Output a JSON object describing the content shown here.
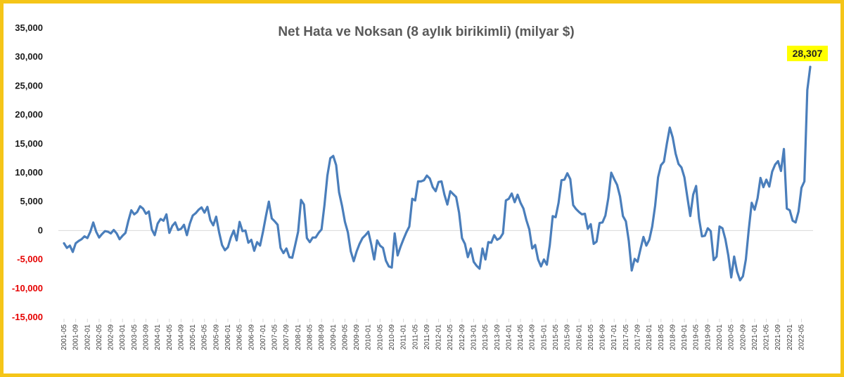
{
  "chart_data": {
    "type": "line",
    "title": "Net Hata ve Noksan (8 aylık birikimli) (milyar $)",
    "xlabel": "",
    "ylabel": "",
    "ylim": [
      -15000,
      35000
    ],
    "yticks": [
      -15000,
      -10000,
      -5000,
      0,
      5000,
      10000,
      15000,
      20000,
      25000,
      30000,
      35000
    ],
    "ytick_labels": [
      "-15,000",
      "-10,000",
      "-5,000",
      "0",
      "5,000",
      "10,000",
      "15,000",
      "20,000",
      "25,000",
      "30,000",
      "35,000"
    ],
    "xtick_labels": [
      "2001-05",
      "2001-09",
      "2002-01",
      "2002-05",
      "2002-09",
      "2003-01",
      "2003-05",
      "2003-09",
      "2004-01",
      "2004-05",
      "2004-09",
      "2005-01",
      "2005-05",
      "2005-09",
      "2006-01",
      "2006-05",
      "2006-09",
      "2007-01",
      "2007-05",
      "2007-09",
      "2008-01",
      "2008-05",
      "2008-09",
      "2009-01",
      "2009-05",
      "2009-09",
      "2010-01",
      "2010-05",
      "2010-09",
      "2011-01",
      "2011-05",
      "2011-09",
      "2012-01",
      "2012-05",
      "2012-09",
      "2013-01",
      "2013-05",
      "2013-09",
      "2014-01",
      "2014-05",
      "2014-09",
      "2015-01",
      "2015-05",
      "2015-09",
      "2016-01",
      "2016-05",
      "2016-09",
      "2017-01",
      "2017-05",
      "2017-09",
      "2018-01",
      "2018-05",
      "2018-09",
      "2019-01",
      "2019-05",
      "2019-09",
      "2020-01",
      "2020-05",
      "2020-09",
      "2021-01",
      "2021-05",
      "2021-09",
      "2022-01",
      "2022-05"
    ],
    "start_period": "2001-05",
    "grid": false,
    "legend": "none",
    "series": [
      {
        "color": "#4a7ebb",
        "values": [
          -2200,
          -3000,
          -2600,
          -3700,
          -2200,
          -1800,
          -1500,
          -1000,
          -1300,
          -200,
          1400,
          -200,
          -1200,
          -600,
          -100,
          -200,
          -500,
          100,
          -500,
          -1500,
          -900,
          -400,
          1700,
          3500,
          2800,
          3200,
          4200,
          3800,
          2900,
          3300,
          200,
          -800,
          1200,
          2000,
          1700,
          2800,
          -400,
          800,
          1400,
          100,
          300,
          1000,
          -800,
          1200,
          2600,
          3000,
          3600,
          4000,
          3100,
          4100,
          1800,
          900,
          2400,
          -300,
          -2500,
          -3400,
          -2900,
          -1200,
          0,
          -1700,
          1500,
          -100,
          0,
          -2100,
          -1600,
          -3500,
          -2000,
          -2600,
          -200,
          2500,
          5000,
          2100,
          1600,
          1000,
          -3000,
          -3900,
          -3100,
          -4600,
          -4700,
          -2500,
          -200,
          5300,
          4500,
          -1300,
          -2000,
          -1200,
          -1200,
          -400,
          200,
          4400,
          9500,
          12500,
          12900,
          11300,
          6600,
          4300,
          1500,
          -300,
          -3600,
          -5300,
          -3600,
          -2300,
          -1300,
          -800,
          -200,
          -2400,
          -5000,
          -1700,
          -2600,
          -3000,
          -5200,
          -6200,
          -6400,
          -500,
          -4300,
          -2800,
          -1500,
          -300,
          700,
          5500,
          5200,
          8500,
          8500,
          8700,
          9500,
          9000,
          7500,
          6800,
          8400,
          8500,
          6200,
          4500,
          6800,
          6300,
          5800,
          3100,
          -1300,
          -2300,
          -4600,
          -3100,
          -5400,
          -6100,
          -6600,
          -3100,
          -5000,
          -2000,
          -2100,
          -800,
          -1600,
          -1300,
          -500,
          5200,
          5500,
          6400,
          4900,
          6200,
          4800,
          3800,
          1800,
          200,
          -3100,
          -2500,
          -5000,
          -6200,
          -5000,
          -5900,
          -2500,
          2500,
          2300,
          4800,
          8700,
          8800,
          9900,
          8900,
          4400,
          3700,
          3200,
          2800,
          2900,
          300,
          1100,
          -2300,
          -1900,
          1300,
          1400,
          2600,
          5600,
          10000,
          8900,
          7900,
          5900,
          2500,
          1600,
          -1800,
          -6900,
          -4900,
          -5400,
          -3200,
          -1100,
          -2600,
          -1600,
          700,
          4300,
          9200,
          11300,
          11900,
          15000,
          17800,
          16100,
          13300,
          11500,
          10900,
          9200,
          5800,
          2500,
          6200,
          7700,
          2100,
          -1000,
          -900,
          400,
          -100,
          -5100,
          -4500,
          700,
          400,
          -1500,
          -4300,
          -8100,
          -4500,
          -7100,
          -8600,
          -7900,
          -5000,
          200,
          4800,
          3600,
          5600,
          9100,
          7500,
          8800,
          7600,
          10200,
          11400,
          12000,
          10300,
          14100,
          3800,
          3500,
          1700,
          1400,
          3300,
          7400,
          8500,
          24300,
          28307
        ]
      }
    ],
    "annotation": {
      "label": "28,307",
      "value": 28307,
      "background": "#ffff00"
    },
    "colors": {
      "positive_tick": "#1a1a1a",
      "negative_tick": "#e60000",
      "frame": "#f5c518",
      "axis": "#d9d9d9"
    }
  }
}
